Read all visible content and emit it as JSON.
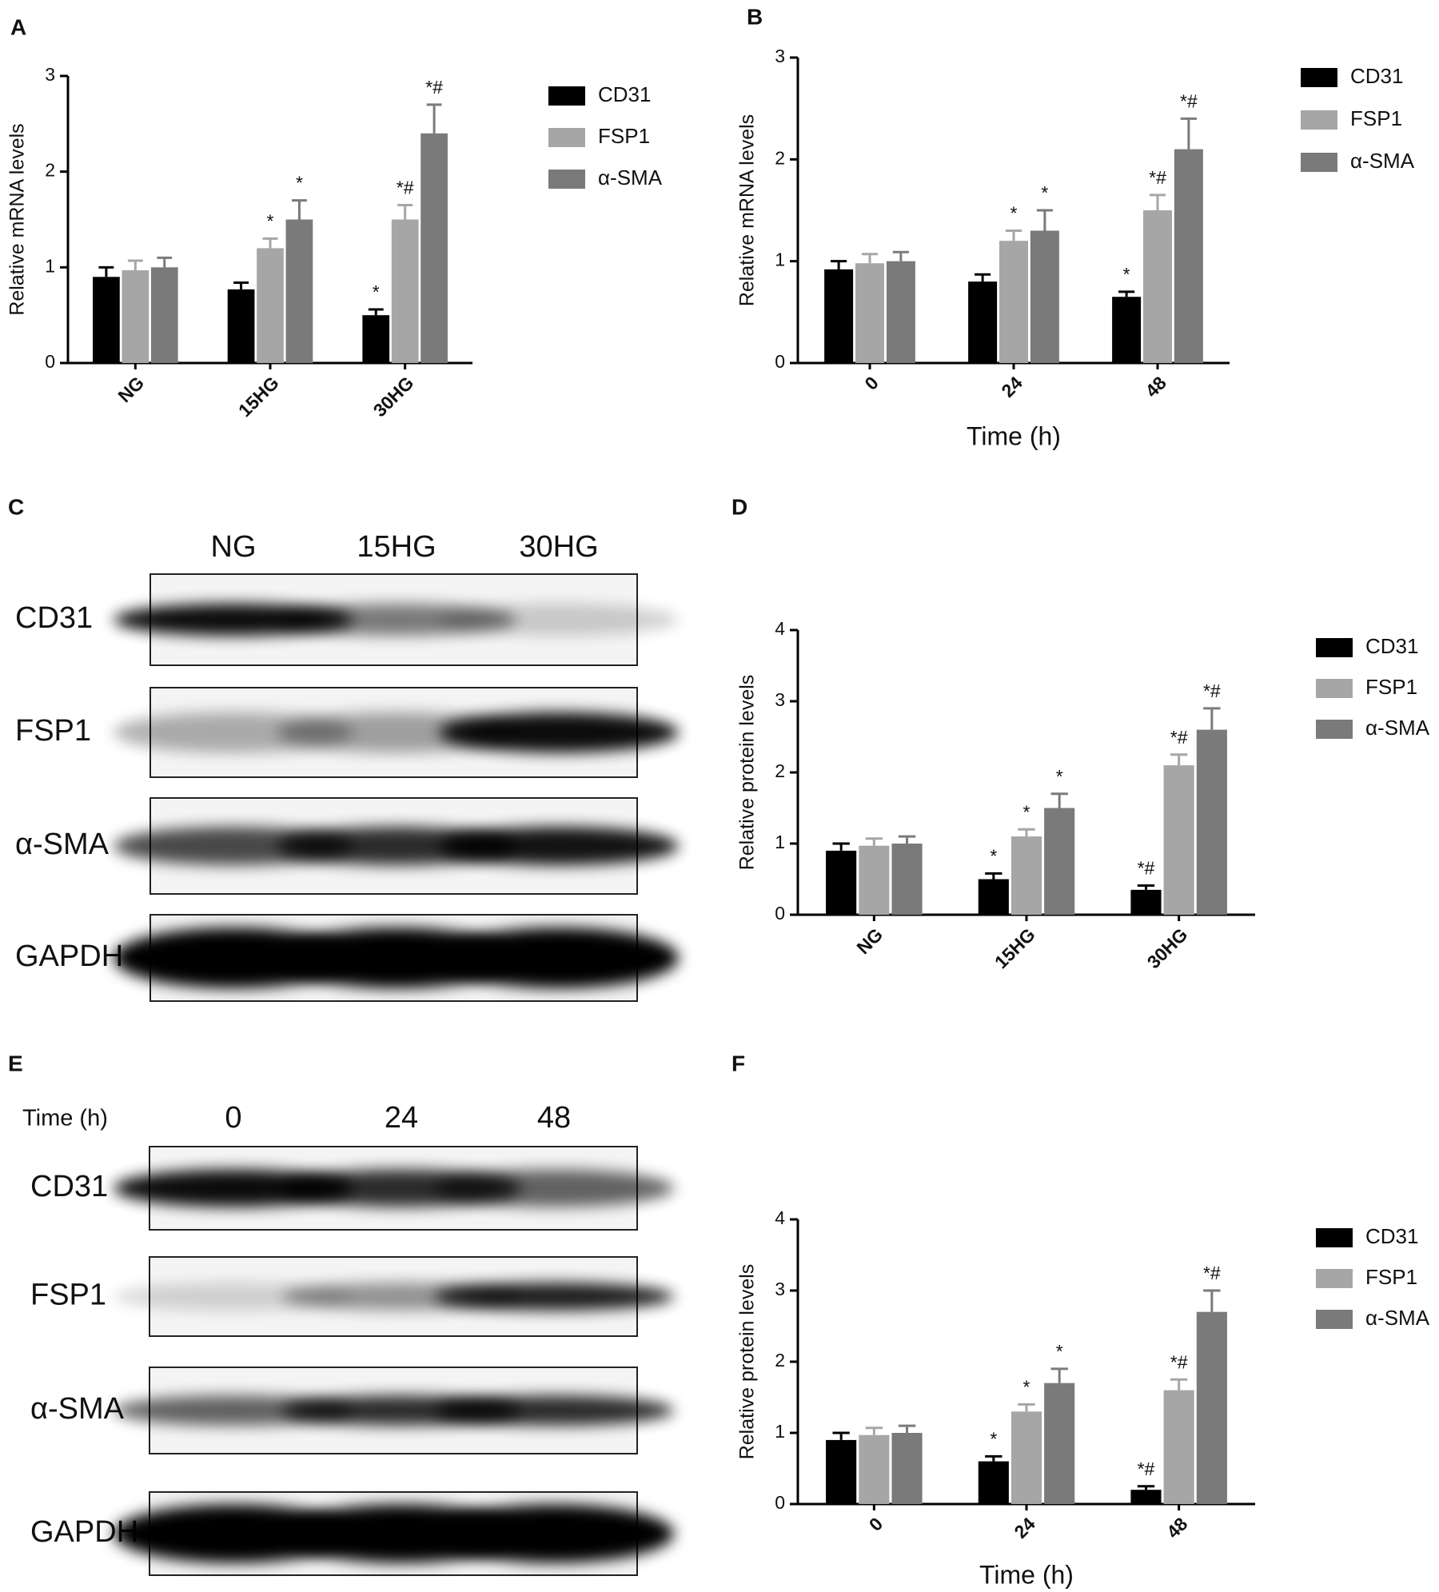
{
  "chart_data": [
    {
      "type": "bar",
      "panel": "A",
      "ylabel": "Relative mRNA levels",
      "categories": [
        "NG",
        "15HG",
        "30HG"
      ],
      "ylim": [
        0,
        3
      ],
      "yticks": [
        0,
        1,
        2,
        3
      ],
      "series": [
        {
          "name": "CD31",
          "color": "#000000",
          "values": [
            0.9,
            0.77,
            0.5
          ],
          "errors": [
            0.1,
            0.07,
            0.06
          ],
          "annotations": [
            null,
            null,
            "*"
          ]
        },
        {
          "name": "FSP1",
          "color": "#a6a6a6",
          "values": [
            0.97,
            1.2,
            1.5
          ],
          "errors": [
            0.1,
            0.1,
            0.15
          ],
          "annotations": [
            null,
            "*",
            "*#"
          ]
        },
        {
          "name": "α-SMA",
          "color": "#7a7a7a",
          "values": [
            1.0,
            1.5,
            2.4
          ],
          "errors": [
            0.1,
            0.2,
            0.3
          ],
          "annotations": [
            null,
            "*",
            "*#"
          ]
        }
      ]
    },
    {
      "type": "bar",
      "panel": "B",
      "ylabel": "Relative mRNA levels",
      "xlabel": "Time (h)",
      "categories": [
        "0",
        "24",
        "48"
      ],
      "ylim": [
        0,
        3
      ],
      "yticks": [
        0,
        1,
        2,
        3
      ],
      "series": [
        {
          "name": "CD31",
          "color": "#000000",
          "values": [
            0.92,
            0.8,
            0.65
          ],
          "errors": [
            0.08,
            0.07,
            0.05
          ],
          "annotations": [
            null,
            null,
            "*"
          ]
        },
        {
          "name": "FSP1",
          "color": "#a6a6a6",
          "values": [
            0.98,
            1.2,
            1.5
          ],
          "errors": [
            0.09,
            0.1,
            0.15
          ],
          "annotations": [
            null,
            "*",
            "*#"
          ]
        },
        {
          "name": "α-SMA",
          "color": "#7a7a7a",
          "values": [
            1.0,
            1.3,
            2.1
          ],
          "errors": [
            0.09,
            0.2,
            0.3
          ],
          "annotations": [
            null,
            "*",
            "*#"
          ]
        }
      ]
    },
    {
      "type": "bar",
      "panel": "D",
      "ylabel": "Relative protein levels",
      "categories": [
        "NG",
        "15HG",
        "30HG"
      ],
      "ylim": [
        0,
        4
      ],
      "yticks": [
        0,
        1,
        2,
        3,
        4
      ],
      "series": [
        {
          "name": "CD31",
          "color": "#000000",
          "values": [
            0.9,
            0.5,
            0.35
          ],
          "errors": [
            0.1,
            0.08,
            0.06
          ],
          "annotations": [
            null,
            "*",
            "*#"
          ]
        },
        {
          "name": "FSP1",
          "color": "#a6a6a6",
          "values": [
            0.97,
            1.1,
            2.1
          ],
          "errors": [
            0.1,
            0.1,
            0.15
          ],
          "annotations": [
            null,
            "*",
            "*#"
          ]
        },
        {
          "name": "α-SMA",
          "color": "#7a7a7a",
          "values": [
            1.0,
            1.5,
            2.6
          ],
          "errors": [
            0.1,
            0.2,
            0.3
          ],
          "annotations": [
            null,
            "*",
            "*#"
          ]
        }
      ]
    },
    {
      "type": "bar",
      "panel": "F",
      "ylabel": "Relative protein levels",
      "xlabel": "Time (h)",
      "categories": [
        "0",
        "24",
        "48"
      ],
      "ylim": [
        0,
        4
      ],
      "yticks": [
        0,
        1,
        2,
        3,
        4
      ],
      "series": [
        {
          "name": "CD31",
          "color": "#000000",
          "values": [
            0.9,
            0.6,
            0.2
          ],
          "errors": [
            0.1,
            0.07,
            0.05
          ],
          "annotations": [
            null,
            "*",
            "*#"
          ]
        },
        {
          "name": "FSP1",
          "color": "#a6a6a6",
          "values": [
            0.97,
            1.3,
            1.6
          ],
          "errors": [
            0.1,
            0.1,
            0.15
          ],
          "annotations": [
            null,
            "*",
            "*#"
          ]
        },
        {
          "name": "α-SMA",
          "color": "#7a7a7a",
          "values": [
            1.0,
            1.7,
            2.7
          ],
          "errors": [
            0.1,
            0.2,
            0.3
          ],
          "annotations": [
            null,
            "*",
            "*#"
          ]
        }
      ]
    }
  ],
  "blots": [
    {
      "panel": "C",
      "lanes": [
        "NG",
        "15HG",
        "30HG"
      ],
      "rows": [
        "CD31",
        "FSP1",
        "α-SMA",
        "GAPDH"
      ]
    },
    {
      "panel": "E",
      "header": "Time (h)",
      "lanes": [
        "0",
        "24",
        "48"
      ],
      "rows": [
        "CD31",
        "FSP1",
        "α-SMA",
        "GAPDH"
      ]
    }
  ]
}
